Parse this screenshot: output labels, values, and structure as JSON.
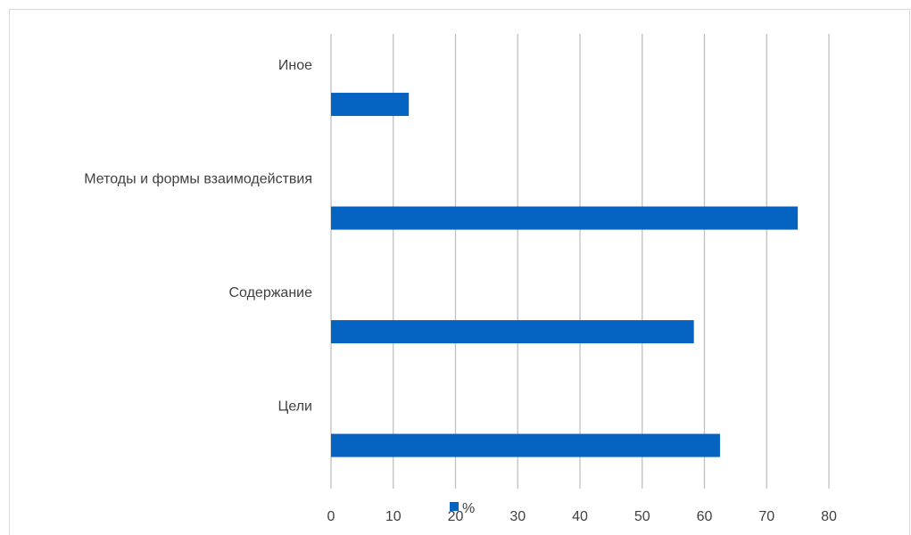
{
  "chart_data": {
    "type": "bar",
    "orientation": "horizontal",
    "categories": [
      "Цели",
      "Содержание",
      "Методы и формы взаимодействия",
      "Иное"
    ],
    "series": [
      {
        "name": "%",
        "values": [
          62.5,
          58.3,
          75,
          12.5
        ],
        "color": "#0563C1"
      }
    ],
    "xlim": [
      0,
      80
    ],
    "xticks": [
      "0",
      "10",
      "20",
      "30",
      "40",
      "50",
      "60",
      "70",
      "80"
    ],
    "grid": true,
    "legend_position": "bottom"
  },
  "colors": {
    "bar": "#0563C1",
    "grid": "#bfbfbf",
    "text": "#404040"
  }
}
